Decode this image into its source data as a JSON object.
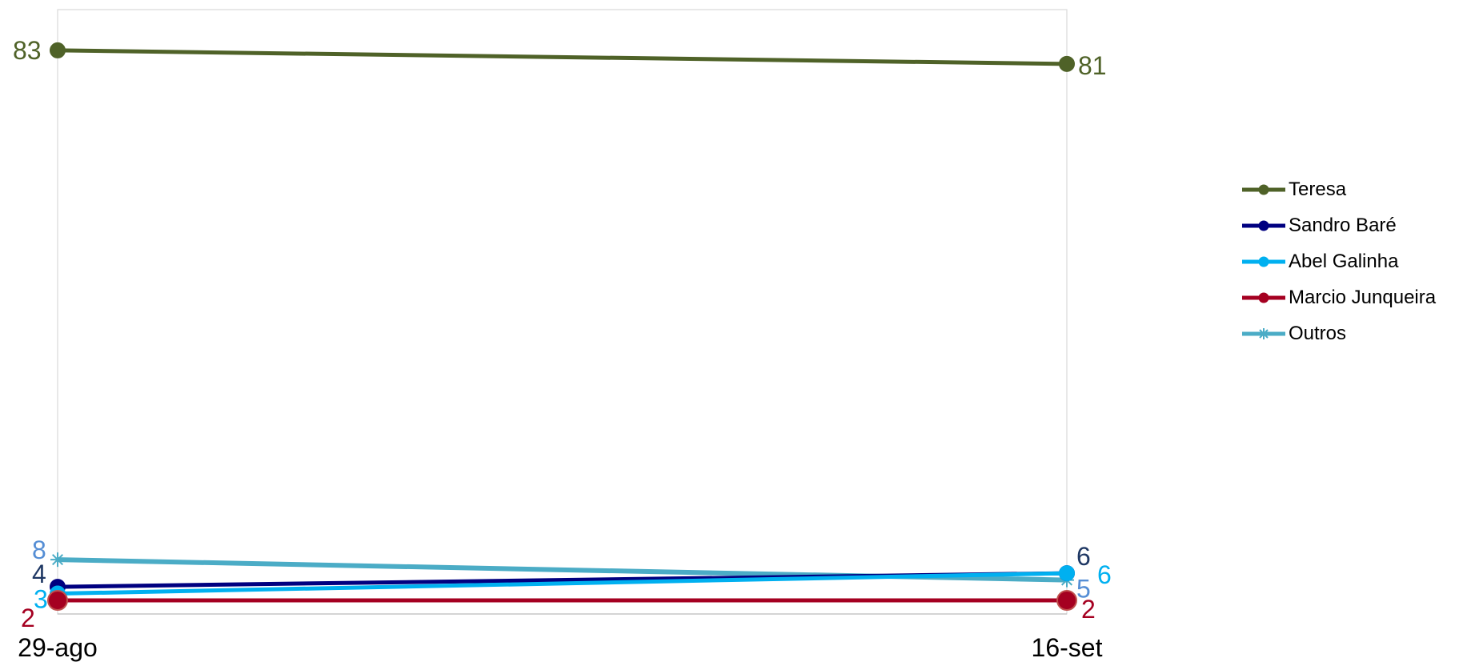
{
  "chart_data": {
    "type": "line",
    "categories": [
      "29-ago",
      "16-set"
    ],
    "ylim": [
      0,
      89
    ],
    "grid": false,
    "legend_position": "right",
    "series": [
      {
        "name": "Teresa",
        "values": [
          83,
          81
        ],
        "color": "#4F6228",
        "marker": "circle",
        "label_color": "#4F6228"
      },
      {
        "name": "Sandro Baré",
        "values": [
          4,
          6
        ],
        "color": "#000080",
        "marker": "circle",
        "label_color": "#1F3864"
      },
      {
        "name": "Abel Galinha",
        "values": [
          3,
          6
        ],
        "color": "#00B0F0",
        "marker": "circle",
        "label_color": "#00B0F0"
      },
      {
        "name": "Marcio Junqueira",
        "values": [
          2,
          2
        ],
        "color": "#A50021",
        "marker": "circle",
        "label_color": "#A50021"
      },
      {
        "name": "Outros",
        "values": [
          8,
          5
        ],
        "color": "#4BACC6",
        "marker": "star",
        "label_color": "#558ED5"
      }
    ]
  }
}
